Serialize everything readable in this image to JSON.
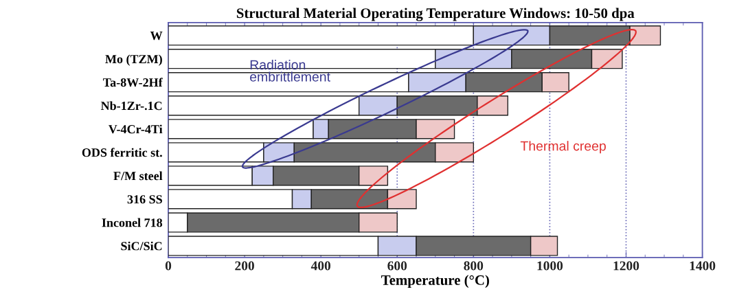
{
  "chart_data": {
    "type": "bar",
    "orientation": "horizontal",
    "stacked": true,
    "title": "Structural Material Operating Temperature Windows: 10-50 dpa",
    "xlabel": "Temperature (°C)",
    "categories": [
      "W",
      "Mo (TZM)",
      "Ta-8W-2Hf",
      "Nb-1Zr-.1C",
      "V-4Cr-4Ti",
      "ODS ferritic st.",
      "F/M steel",
      "316 SS",
      "Inconel 718",
      "SiC/SiC"
    ],
    "series": [
      {
        "color": "#ffffff",
        "values": [
          800,
          700,
          630,
          500,
          380,
          250,
          220,
          325,
          50,
          550
        ]
      },
      {
        "color": "#c8ccee",
        "values": [
          200,
          200,
          150,
          100,
          40,
          80,
          55,
          50,
          0,
          100
        ]
      },
      {
        "color": "#6b6b6b",
        "values": [
          210,
          210,
          200,
          210,
          230,
          370,
          225,
          200,
          450,
          300
        ]
      },
      {
        "color": "#eec8c8",
        "values": [
          80,
          80,
          70,
          80,
          100,
          100,
          75,
          75,
          100,
          70
        ]
      }
    ],
    "xlim": [
      0,
      1400
    ],
    "xticks": [
      0,
      200,
      400,
      600,
      800,
      1000,
      1200,
      1400
    ],
    "ref_lines": [
      {
        "axis": "x",
        "value": 600,
        "color": "#6a6ab8",
        "line_style": "dotted"
      },
      {
        "axis": "x",
        "value": 800,
        "color": "#6a6ab8",
        "line_style": "dotted"
      },
      {
        "axis": "x",
        "value": 1000,
        "color": "#6a6ab8",
        "line_style": "dotted"
      },
      {
        "axis": "x",
        "value": 1200,
        "color": "#6a6ab8",
        "line_style": "dotted"
      }
    ],
    "annotations": [
      "Radiation\nembrittlement",
      "Thermal creep"
    ],
    "grid": false
  }
}
